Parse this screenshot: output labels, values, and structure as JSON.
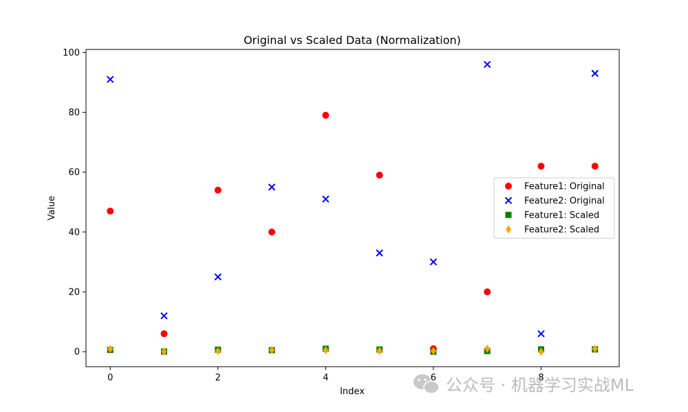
{
  "chart_data": {
    "type": "scatter",
    "title": "Original vs Scaled Data (Normalization)",
    "xlabel": "Index",
    "ylabel": "Value",
    "xlim": [
      -0.45,
      9.45
    ],
    "ylim": [
      -5,
      101
    ],
    "x_ticks": [
      0,
      2,
      4,
      6,
      8
    ],
    "y_ticks": [
      0,
      20,
      40,
      60,
      80,
      100
    ],
    "grid": false,
    "legend_position": "center-right",
    "x": [
      0,
      1,
      2,
      3,
      4,
      5,
      6,
      7,
      8,
      9
    ],
    "series": [
      {
        "name": "Feature1: Original",
        "marker": "circle",
        "color": "#ff0000",
        "values": [
          47,
          6,
          54,
          40,
          79,
          59,
          1,
          20,
          62,
          62
        ]
      },
      {
        "name": "Feature2: Original",
        "marker": "x",
        "color": "#0000ff",
        "values": [
          91,
          12,
          25,
          55,
          51,
          33,
          30,
          96,
          6,
          93
        ]
      },
      {
        "name": "Feature1: Scaled",
        "marker": "square",
        "color": "#008000",
        "values": [
          0.59,
          0.06,
          0.68,
          0.5,
          1.0,
          0.74,
          0.0,
          0.24,
          0.78,
          0.78
        ]
      },
      {
        "name": "Feature2: Scaled",
        "marker": "diamond",
        "color": "#ffa500",
        "values": [
          0.94,
          0.07,
          0.21,
          0.55,
          0.5,
          0.3,
          0.27,
          1.0,
          0.0,
          0.96
        ]
      }
    ]
  },
  "watermark": {
    "text": "公众号 · 机器学习实战ML",
    "icon": "wechat-icon"
  }
}
